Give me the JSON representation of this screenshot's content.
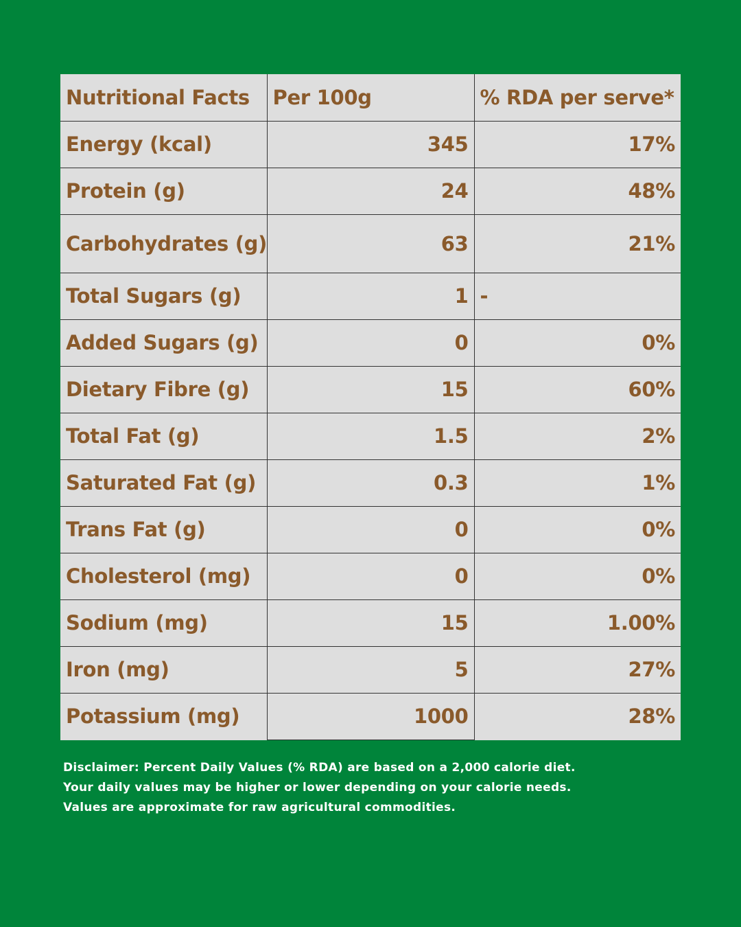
{
  "table": {
    "headers": {
      "label": "Nutritional Facts",
      "per100": "Per 100g",
      "rda": "% RDA per serve*"
    },
    "rows": [
      {
        "label": "Energy (kcal)",
        "per100": "345",
        "rda": "17%"
      },
      {
        "label": "Protein (g)",
        "per100": "24",
        "rda": "48%"
      },
      {
        "label": "Carbohydrates (g)",
        "per100": "63",
        "rda": "21%"
      },
      {
        "label": "Total Sugars (g)",
        "per100": "1",
        "rda": "-"
      },
      {
        "label": "Added Sugars (g)",
        "per100": "0",
        "rda": "0%"
      },
      {
        "label": "Dietary Fibre (g)",
        "per100": "15",
        "rda": "60%"
      },
      {
        "label": "Total Fat (g)",
        "per100": "1.5",
        "rda": "2%"
      },
      {
        "label": "Saturated Fat (g)",
        "per100": "0.3",
        "rda": "1%"
      },
      {
        "label": "Trans Fat (g)",
        "per100": "0",
        "rda": "0%"
      },
      {
        "label": "Cholesterol (mg)",
        "per100": "0",
        "rda": "0%"
      },
      {
        "label": "Sodium (mg)",
        "per100": "15",
        "rda": "1.00%"
      },
      {
        "label": "Iron (mg)",
        "per100": "5",
        "rda": "27%"
      },
      {
        "label": "Potassium (mg)",
        "per100": "1000",
        "rda": "28%"
      }
    ]
  },
  "disclaimer": {
    "line1": "Disclaimer: Percent Daily Values (% RDA) are based on a 2,000 calorie diet.",
    "line2": "Your daily values may be higher or lower depending on your calorie needs.",
    "line3": "Values are approximate for raw agricultural commodities."
  },
  "colors": {
    "background": "#00843a",
    "table": "#dedede",
    "text": "#8a5a2b",
    "disclaimer": "#ffffff"
  }
}
